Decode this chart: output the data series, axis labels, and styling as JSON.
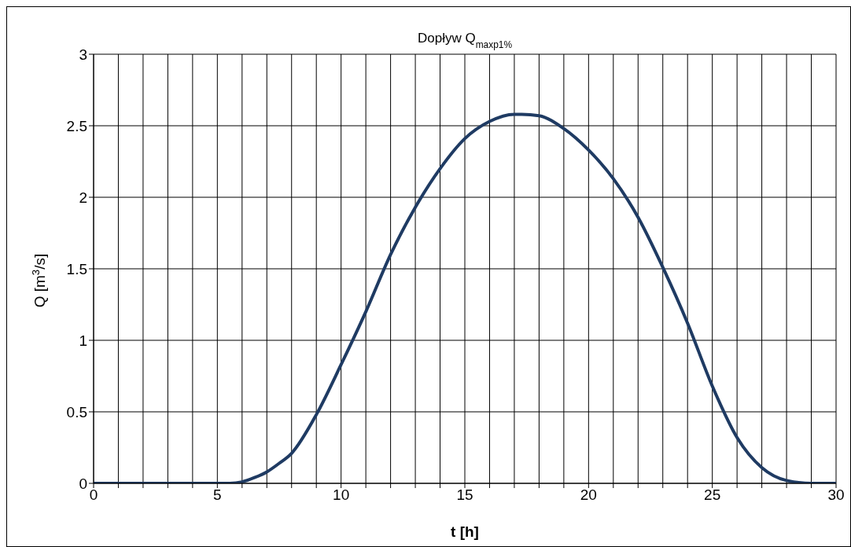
{
  "chart_data": {
    "type": "line",
    "title": "Dopływ Q$_{maxp1%}$",
    "xlabel": "t [h]",
    "ylabel": "Q [m$^{3}$/s]",
    "x": [
      0,
      1,
      2,
      3,
      4,
      5,
      5.5,
      6,
      6.5,
      7,
      7.5,
      8,
      9,
      10,
      11,
      12,
      13,
      14,
      15,
      16,
      17,
      17.3,
      18,
      19,
      20,
      21,
      22,
      23,
      24,
      25,
      26,
      27,
      28,
      29,
      30
    ],
    "series": [
      {
        "color": "#1f3b63",
        "values": [
          0,
          0,
          0,
          0,
          0,
          0,
          0,
          0.01,
          0.04,
          0.08,
          0.14,
          0.21,
          0.48,
          0.83,
          1.2,
          1.6,
          1.93,
          2.2,
          2.41,
          2.53,
          2.58,
          2.58,
          2.57,
          2.48,
          2.33,
          2.13,
          1.86,
          1.51,
          1.12,
          0.68,
          0.32,
          0.11,
          0.02,
          0,
          0
        ]
      }
    ],
    "xlim": [
      0,
      30
    ],
    "xticks": [
      0,
      {
        "value": 1,
        "label": null
      },
      {
        "value": 2,
        "label": null
      },
      {
        "value": 3,
        "label": null
      },
      {
        "value": 4,
        "label": null
      },
      5,
      {
        "value": 6,
        "label": null
      },
      {
        "value": 7,
        "label": null
      },
      {
        "value": 8,
        "label": null
      },
      {
        "value": 9,
        "label": null
      },
      10,
      {
        "value": 11,
        "label": null
      },
      {
        "value": 12,
        "label": null
      },
      {
        "value": 13,
        "label": null
      },
      {
        "value": 14,
        "label": null
      },
      15,
      {
        "value": 16,
        "label": null
      },
      {
        "value": 17,
        "label": null
      },
      {
        "value": 18,
        "label": null
      },
      {
        "value": 19,
        "label": null
      },
      20,
      {
        "value": 21,
        "label": null
      },
      {
        "value": 22,
        "label": null
      },
      {
        "value": 23,
        "label": null
      },
      {
        "value": 24,
        "label": null
      },
      25,
      {
        "value": 26,
        "label": null
      },
      {
        "value": 27,
        "label": null
      },
      {
        "value": 28,
        "label": null
      },
      {
        "value": 29,
        "label": null
      },
      30
    ],
    "ylim": [
      0,
      3
    ],
    "yticks": [
      0,
      0.5,
      1,
      1.5,
      2,
      2.5,
      3
    ],
    "grid": true,
    "marker": "none",
    "line_style": "solid"
  }
}
